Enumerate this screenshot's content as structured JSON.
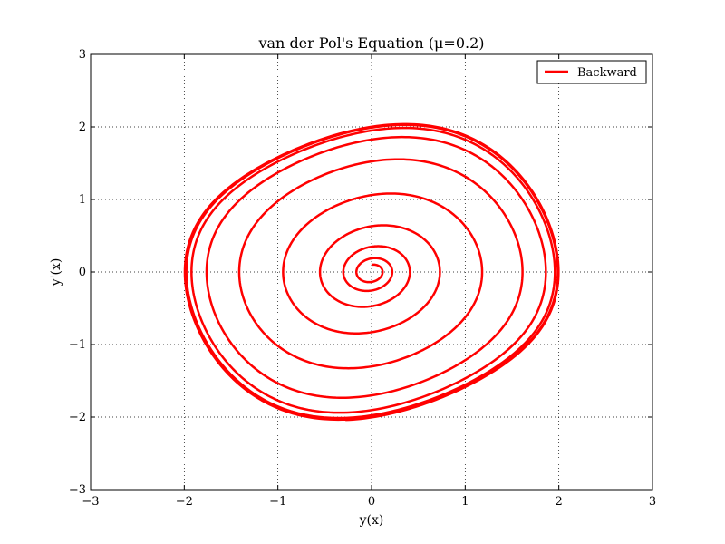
{
  "chart_data": {
    "type": "line",
    "title": "van der Pol's Equation (μ=0.2)",
    "xlabel": "y(x)",
    "ylabel": "y'(x)",
    "xlim": [
      -3,
      3
    ],
    "ylim": [
      -3,
      3
    ],
    "grid": true,
    "legend_placement": "top-right",
    "x_ticks": [
      -3,
      -2,
      -1,
      0,
      1,
      2,
      3
    ],
    "y_ticks": [
      -3,
      -2,
      -1,
      0,
      1,
      2,
      3
    ],
    "x_tick_labels": [
      "−3",
      "−2",
      "−1",
      "0",
      "1",
      "2",
      "3"
    ],
    "y_tick_labels": [
      "−3",
      "−2",
      "−1",
      "0",
      "1",
      "2",
      "3"
    ],
    "series": [
      {
        "name": "Backward",
        "color": "#ff0000",
        "mu": 0.2,
        "initial_point": [
          0.0,
          0.1
        ],
        "x_range": [
          0,
          60
        ]
      }
    ]
  }
}
